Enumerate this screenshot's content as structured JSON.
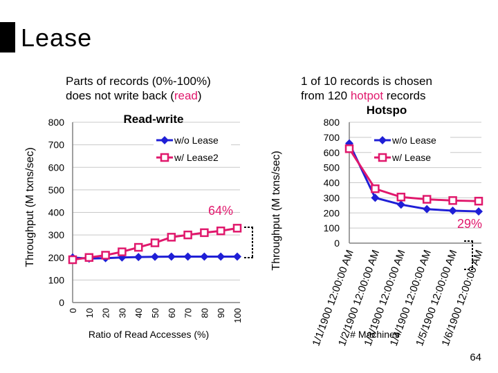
{
  "slide": {
    "title": "Lease",
    "page_number": "64",
    "left_caption_lines": [
      "Parts of records (0%-100%)",
      "does not write back ("
    ],
    "left_caption_accent": "read",
    "left_caption_close": ")",
    "right_caption_lines": [
      "1 of 10 records is chosen",
      "from 120 "
    ],
    "right_caption_accent": "hotpot",
    "right_caption_tail": " records"
  },
  "colors": {
    "lease": "#1f1fd6",
    "lease2": "#e0186c",
    "axis": "#808080",
    "grid": "#c8c8c8"
  },
  "chart_data": [
    {
      "type": "line",
      "title": "Read-write",
      "xlabel": "Ratio of Read Accesses (%)",
      "ylabel": "Throughput (M txns/sec)",
      "ylim": [
        0,
        800
      ],
      "yticks": [
        0,
        100,
        200,
        300,
        400,
        500,
        600,
        700,
        800
      ],
      "categories": [
        "0",
        "10",
        "20",
        "30",
        "40",
        "50",
        "60",
        "70",
        "80",
        "90",
        "100"
      ],
      "series": [
        {
          "name": "w/o Lease",
          "values": [
            200,
            195,
            197,
            200,
            202,
            203,
            204,
            204,
            204,
            204,
            204
          ]
        },
        {
          "name": "w/ Lease2",
          "values": [
            190,
            200,
            210,
            225,
            245,
            265,
            290,
            300,
            310,
            318,
            330
          ]
        }
      ],
      "annotations": [
        "64%"
      ],
      "legend": "top-right",
      "grid": true
    },
    {
      "type": "line",
      "title": "Hotspo",
      "xlabel": "# Machines",
      "ylabel": "Throughput (M txns/sec)",
      "ylim": [
        0,
        800
      ],
      "yticks": [
        0,
        100,
        200,
        300,
        400,
        500,
        600,
        700,
        800
      ],
      "categories": [
        "1/1/1900 12:00:00 AM",
        "1/2/1900 12:00:00 AM",
        "1/3/1900 12:00:00 AM",
        "1/4/1900 12:00:00 AM",
        "1/5/1900 12:00:00 AM",
        "1/6/1900 12:00:00 AM"
      ],
      "series": [
        {
          "name": "w/o Lease",
          "values": [
            660,
            300,
            255,
            225,
            215,
            210
          ]
        },
        {
          "name": "w/ Lease",
          "values": [
            625,
            360,
            305,
            290,
            282,
            278
          ]
        }
      ],
      "annotations": [
        "29%"
      ],
      "legend": "top-right",
      "grid": true
    }
  ]
}
